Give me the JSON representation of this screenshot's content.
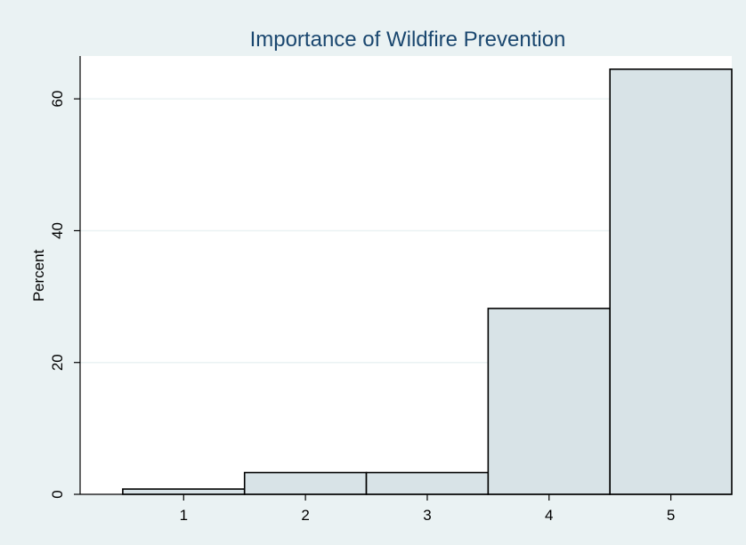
{
  "chart_data": {
    "type": "bar",
    "title": "Importance of Wildfire Prevention",
    "xlabel": "",
    "ylabel": "Percent",
    "categories": [
      "1",
      "2",
      "3",
      "4",
      "5"
    ],
    "values": [
      0.8,
      3.3,
      3.3,
      28.2,
      64.5
    ],
    "ylim": [
      0,
      66.5
    ],
    "yticks": [
      0,
      20,
      40,
      60
    ],
    "xlim": [
      0.15,
      5.5
    ],
    "grid": true,
    "legend": "none",
    "colors": {
      "background": "#eaf2f3",
      "plot_area": "#ffffff",
      "bar_fill": "#d8e3e7",
      "bar_stroke": "#000000",
      "gridline": "#eaf2f3",
      "title": "#1a476f"
    }
  }
}
